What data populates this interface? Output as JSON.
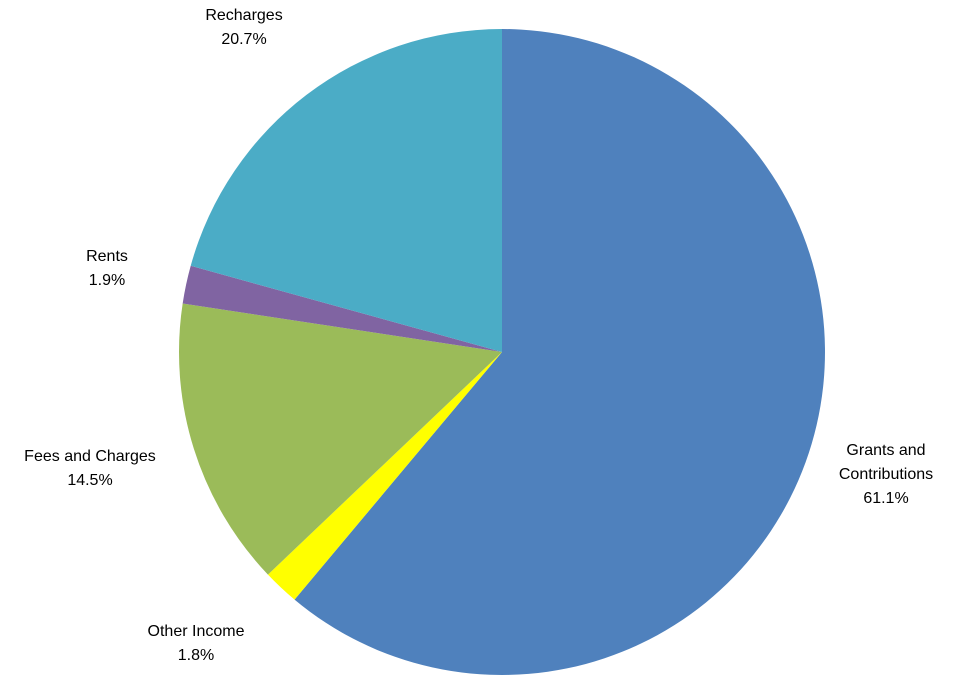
{
  "chart_data": {
    "type": "pie",
    "start": "12 o'clock",
    "direction": "clockwise",
    "slices": [
      {
        "name_lines": [
          "Grants and",
          "Contributions"
        ],
        "value_label": "61.1%",
        "value": 61.1,
        "color": "#4F81BD"
      },
      {
        "name_lines": [
          "Other Income"
        ],
        "value_label": "1.8%",
        "value": 1.8,
        "color": "#FFFF00"
      },
      {
        "name_lines": [
          "Fees and Charges"
        ],
        "value_label": "14.5%",
        "value": 14.5,
        "color": "#9BBB59"
      },
      {
        "name_lines": [
          "Rents"
        ],
        "value_label": "1.9%",
        "value": 1.9,
        "color": "#8064A2"
      },
      {
        "name_lines": [
          "Recharges"
        ],
        "value_label": "20.7%",
        "value": 20.7,
        "color": "#4BACC6"
      }
    ]
  }
}
